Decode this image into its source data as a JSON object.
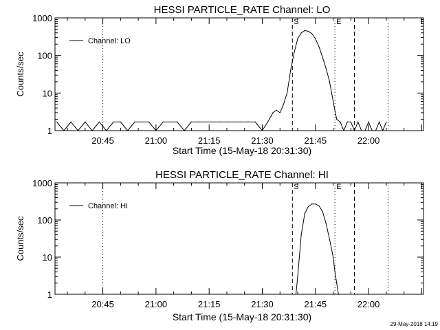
{
  "footer": "29-May-2018 14:19",
  "chart_data": [
    {
      "type": "line",
      "title": "HESSI PARTICLE_RATE Channel: LO",
      "xlabel": "Start Time (15-May-18 20:31:30)",
      "ylabel": "Counts/sec",
      "yscale": "log",
      "ylim": [
        1,
        1000
      ],
      "yticks": [
        "1",
        "10",
        "100",
        "1000"
      ],
      "xlim": [
        "20:31:30",
        "22:15:30"
      ],
      "xticks": [
        "20:45",
        "21:00",
        "21:15",
        "21:30",
        "21:45",
        "22:00"
      ],
      "legend": "top-left",
      "series": [
        {
          "name": "Channel: LO",
          "x": [
            "20:32",
            "20:34",
            "20:36",
            "20:38",
            "20:40",
            "20:42",
            "20:44",
            "20:46",
            "20:48",
            "20:50",
            "20:52",
            "20:54",
            "20:56",
            "20:58",
            "21:00",
            "21:02",
            "21:04",
            "21:06",
            "21:08",
            "21:10",
            "21:12",
            "21:14",
            "21:16",
            "21:18",
            "21:20",
            "21:22",
            "21:24",
            "21:26",
            "21:28",
            "21:30",
            "21:32",
            "21:33",
            "21:34",
            "21:35",
            "21:36",
            "21:37",
            "21:38",
            "21:39",
            "21:40",
            "21:41",
            "21:42",
            "21:43",
            "21:44",
            "21:45",
            "21:46",
            "21:47",
            "21:48",
            "21:49",
            "21:50",
            "21:51",
            "21:52",
            "21:53",
            "21:54",
            "21:55",
            "21:56",
            "21:57",
            "21:58",
            "21:59",
            "22:00",
            "22:01",
            "22:02",
            "22:03",
            "22:04",
            "22:05"
          ],
          "values": [
            1.7,
            1,
            1.7,
            1,
            1.7,
            1,
            1.7,
            1,
            1.7,
            1.7,
            1,
            1.7,
            1.7,
            1.7,
            1,
            1.7,
            1.7,
            1.7,
            1,
            1.7,
            1.7,
            1.7,
            1.7,
            1.7,
            1.7,
            1.7,
            1.7,
            1.7,
            1.7,
            1,
            2,
            3,
            3.5,
            3,
            5,
            10,
            40,
            120,
            280,
            400,
            460,
            440,
            380,
            280,
            170,
            90,
            45,
            20,
            6,
            2,
            1.7,
            1,
            1.7,
            1.7,
            1,
            1.7,
            1,
            1,
            1.7,
            1,
            1,
            1.7,
            1,
            1.7
          ]
        }
      ],
      "markers": [
        {
          "label": "S",
          "x": "21:38:30",
          "style": "dashed"
        },
        {
          "label": "E",
          "x": "21:50:30",
          "style": "dotted"
        },
        {
          "label": "",
          "x": "21:56:00",
          "style": "dashed"
        }
      ],
      "reference_lines": [
        {
          "x": "20:45:00",
          "style": "dotted"
        },
        {
          "x": "22:05:30",
          "style": "dotted"
        }
      ]
    },
    {
      "type": "line",
      "title": "HESSI PARTICLE_RATE Channel: HI",
      "xlabel": "Start Time (15-May-18 20:31:30)",
      "ylabel": "Counts/sec",
      "yscale": "log",
      "ylim": [
        1,
        1000
      ],
      "yticks": [
        "1",
        "10",
        "100",
        "1000"
      ],
      "xlim": [
        "20:31:30",
        "22:15:30"
      ],
      "xticks": [
        "20:45",
        "21:00",
        "21:15",
        "21:30",
        "21:45",
        "22:00"
      ],
      "legend": "top-left",
      "series": [
        {
          "name": "Channel: HI",
          "x": [
            "21:39:30",
            "21:40",
            "21:41",
            "21:42",
            "21:43",
            "21:44",
            "21:45",
            "21:46",
            "21:47",
            "21:48",
            "21:49",
            "21:50",
            "21:50:30",
            "21:51",
            "21:51:30"
          ],
          "values": [
            1,
            3,
            40,
            150,
            230,
            270,
            270,
            240,
            170,
            80,
            30,
            10,
            4,
            2,
            1
          ]
        }
      ],
      "markers": [
        {
          "label": "S",
          "x": "21:38:30",
          "style": "dashed"
        },
        {
          "label": "E",
          "x": "21:50:30",
          "style": "dotted"
        },
        {
          "label": "",
          "x": "21:56:00",
          "style": "dashed"
        }
      ],
      "reference_lines": [
        {
          "x": "20:45:00",
          "style": "dotted"
        },
        {
          "x": "22:05:30",
          "style": "dotted"
        }
      ]
    }
  ]
}
